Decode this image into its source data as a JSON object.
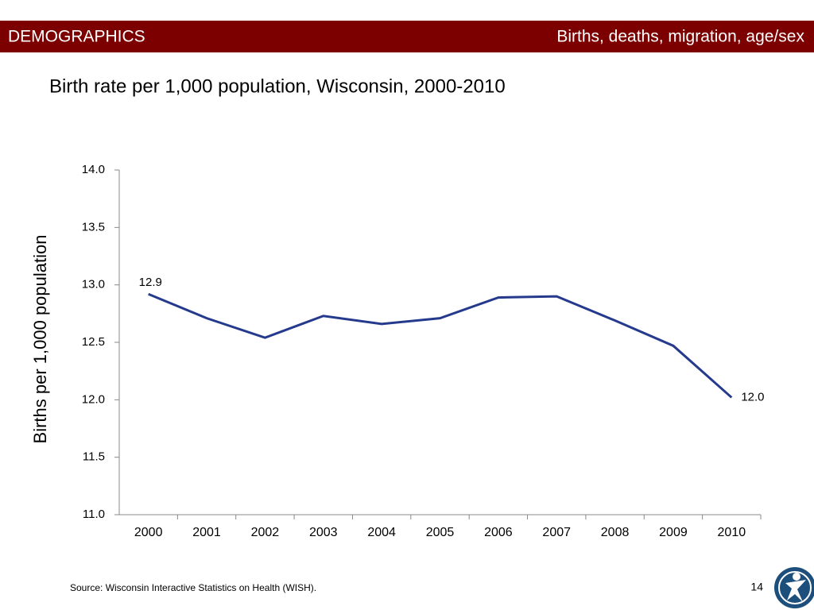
{
  "header": {
    "left": "DEMOGRAPHICS",
    "right": "Births, deaths, migration, age/sex"
  },
  "chart_data": {
    "type": "line",
    "title": "Birth rate per 1,000 population, Wisconsin, 2000-2010",
    "y_label": "Births per 1,000 population",
    "categories": [
      "2000",
      "2001",
      "2002",
      "2003",
      "2004",
      "2005",
      "2006",
      "2007",
      "2008",
      "2009",
      "2010"
    ],
    "series": [
      {
        "name": "Birth rate",
        "color": "#253a8c",
        "values": [
          12.92,
          12.71,
          12.54,
          12.73,
          12.66,
          12.71,
          12.89,
          12.9,
          12.69,
          12.47,
          12.02
        ],
        "value_labels": [
          "12.9",
          null,
          null,
          null,
          null,
          null,
          null,
          null,
          null,
          null,
          "12.0"
        ]
      }
    ],
    "ylim": [
      11.0,
      14.0
    ],
    "yticks": [
      {
        "value": 11.0,
        "label": "11.0"
      },
      {
        "value": 11.5,
        "label": "11.5"
      },
      {
        "value": 12.0,
        "label": "12.0"
      },
      {
        "value": 12.5,
        "label": "12.5"
      },
      {
        "value": 13.0,
        "label": "13.0"
      },
      {
        "value": 13.5,
        "label": "13.5"
      },
      {
        "value": 14.0,
        "label": "14.0"
      }
    ],
    "grid": false
  },
  "footer": {
    "source": "Source: Wisconsin Interactive Statistics on Health (WISH).",
    "page": "14"
  }
}
